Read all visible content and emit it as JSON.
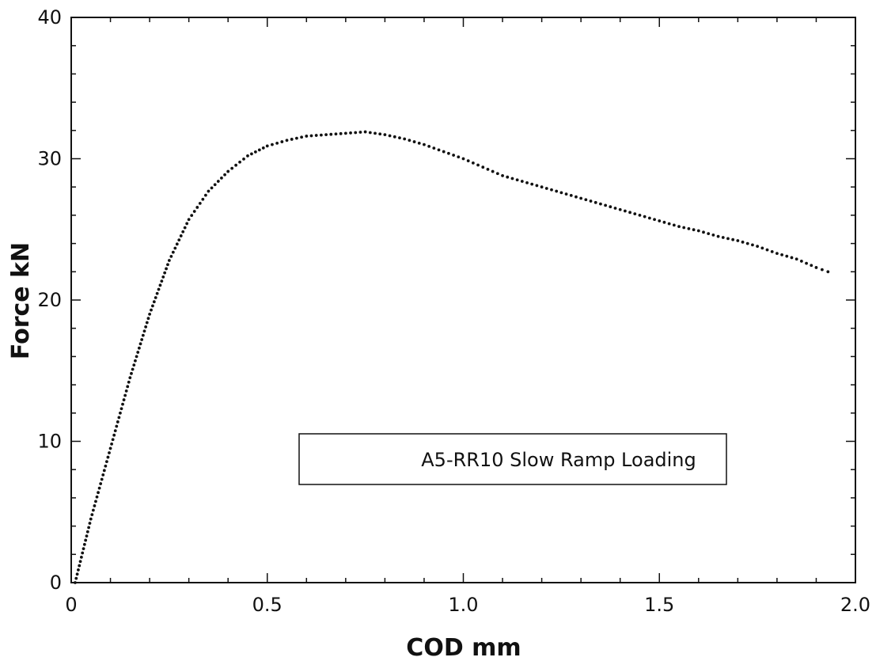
{
  "chart_data": {
    "type": "scatter",
    "xlabel": "COD mm",
    "ylabel": "Force kN",
    "xlim": [
      0,
      2.0
    ],
    "ylim": [
      0,
      40
    ],
    "x_ticks": [
      "0",
      "0.5",
      "1.0",
      "1.5",
      "2.0"
    ],
    "y_ticks": [
      "0",
      "10",
      "20",
      "30",
      "40"
    ],
    "x_tick_values": [
      0,
      0.5,
      1.0,
      1.5,
      2.0
    ],
    "y_tick_values": [
      0,
      10,
      20,
      30,
      40
    ],
    "grid": false,
    "legend_position": "center-right",
    "series": [
      {
        "name": "A5-RR10 Slow Ramp Loading",
        "color": "#111111",
        "marker": "dot",
        "x": [
          0.01,
          0.05,
          0.1,
          0.15,
          0.2,
          0.25,
          0.3,
          0.35,
          0.4,
          0.45,
          0.5,
          0.55,
          0.6,
          0.65,
          0.7,
          0.75,
          0.8,
          0.85,
          0.9,
          0.95,
          1.0,
          1.05,
          1.1,
          1.15,
          1.2,
          1.25,
          1.3,
          1.35,
          1.4,
          1.45,
          1.5,
          1.55,
          1.6,
          1.65,
          1.7,
          1.75,
          1.8,
          1.85,
          1.9,
          1.93
        ],
        "y": [
          0.0,
          4.5,
          9.5,
          14.5,
          19.0,
          22.8,
          25.7,
          27.7,
          29.1,
          30.2,
          30.9,
          31.3,
          31.6,
          31.7,
          31.8,
          31.9,
          31.7,
          31.4,
          31.0,
          30.5,
          30.0,
          29.4,
          28.8,
          28.4,
          28.0,
          27.6,
          27.2,
          26.8,
          26.4,
          26.0,
          25.6,
          25.2,
          24.9,
          24.5,
          24.2,
          23.8,
          23.3,
          22.9,
          22.3,
          22.0
        ]
      }
    ]
  }
}
